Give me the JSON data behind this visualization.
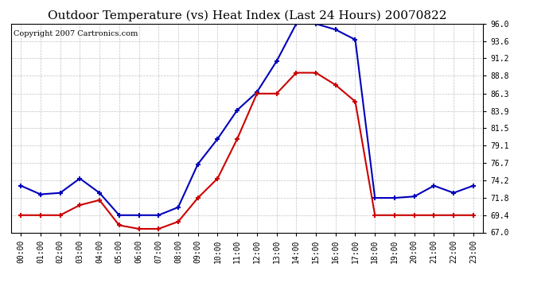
{
  "title": "Outdoor Temperature (vs) Heat Index (Last 24 Hours) 20070822",
  "copyright": "Copyright 2007 Cartronics.com",
  "hours": [
    "00:00",
    "01:00",
    "02:00",
    "03:00",
    "04:00",
    "05:00",
    "06:00",
    "07:00",
    "08:00",
    "09:00",
    "10:00",
    "11:00",
    "12:00",
    "13:00",
    "14:00",
    "15:00",
    "16:00",
    "17:00",
    "18:00",
    "19:00",
    "20:00",
    "21:00",
    "22:00",
    "23:00"
  ],
  "blue_temp": [
    73.5,
    72.3,
    72.5,
    74.5,
    72.5,
    69.4,
    69.4,
    69.4,
    70.5,
    76.5,
    80.0,
    84.0,
    86.5,
    90.8,
    96.0,
    96.0,
    95.2,
    93.8,
    71.8,
    71.8,
    72.0,
    73.5,
    72.5,
    73.5
  ],
  "red_heat": [
    69.4,
    69.4,
    69.4,
    70.8,
    71.5,
    68.0,
    67.5,
    67.5,
    68.5,
    71.8,
    74.5,
    80.0,
    86.3,
    86.3,
    89.2,
    89.2,
    87.5,
    85.2,
    69.4,
    69.4,
    69.4,
    69.4,
    69.4,
    69.4
  ],
  "ylim": [
    67.0,
    96.0
  ],
  "yticks": [
    67.0,
    69.4,
    71.8,
    74.2,
    76.7,
    79.1,
    81.5,
    83.9,
    86.3,
    88.8,
    91.2,
    93.6,
    96.0
  ],
  "blue_color": "#0000bb",
  "red_color": "#cc0000",
  "bg_color": "#ffffff",
  "grid_color": "#bbbbbb",
  "title_fontsize": 11,
  "copyright_fontsize": 7,
  "figwidth": 6.9,
  "figheight": 3.75,
  "dpi": 100
}
